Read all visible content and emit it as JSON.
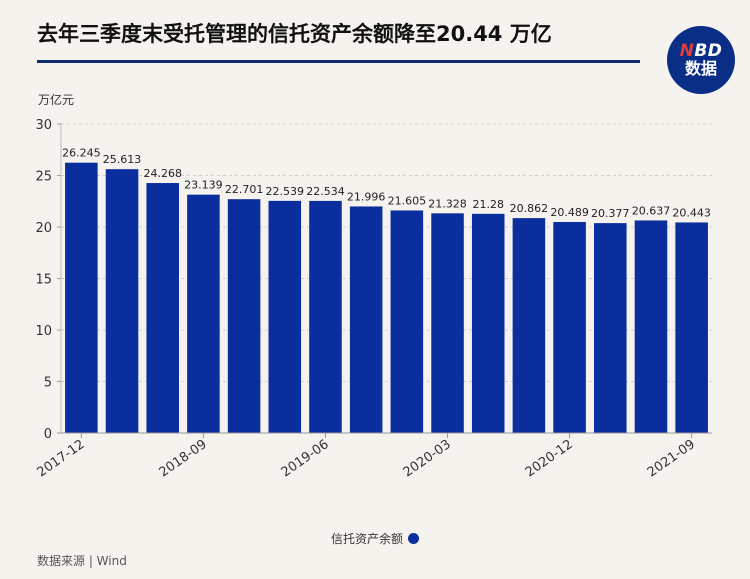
{
  "header": {
    "title": "去年三季度末受托管理的信托资产余额降至20.44 万亿",
    "logo_top": "NBD",
    "logo_bottom": "数据"
  },
  "source": "数据来源 | Wind",
  "colors": {
    "bar": "#0b2e9e",
    "title_rule": "#0e2a6e",
    "logo_bg": "#0a2e86"
  },
  "chart_data": {
    "type": "bar",
    "title": "去年三季度末受托管理的信托资产余额降至20.44 万亿",
    "ylabel": "万亿元",
    "ylim": [
      0,
      30
    ],
    "yticks": [
      0,
      5,
      10,
      15,
      20,
      25,
      30
    ],
    "grid": true,
    "legend_position": "bottom",
    "categories": [
      "2017-12",
      "2018-03",
      "2018-06",
      "2018-09",
      "2018-12",
      "2019-03",
      "2019-06",
      "2019-09",
      "2019-12",
      "2020-03",
      "2020-06",
      "2020-09",
      "2020-12",
      "2021-03",
      "2021-06",
      "2021-09"
    ],
    "xtick_labels_shown": [
      "2017-12",
      "2018-09",
      "2019-06",
      "2020-03",
      "2020-12",
      "2021-09"
    ],
    "series": [
      {
        "name": "信托资产余额",
        "values": [
          26.245,
          25.613,
          24.268,
          23.139,
          22.701,
          22.539,
          22.534,
          21.996,
          21.605,
          21.328,
          21.28,
          20.862,
          20.489,
          20.377,
          20.637,
          20.443
        ],
        "value_labels": [
          "26.245",
          "25.613",
          "24.268",
          "23.139",
          "22.701",
          "22.539",
          "22.534",
          "21.996",
          "21.605",
          "21.328",
          "21.28",
          "20.862",
          "20.489",
          "20.377",
          "20.637",
          "20.443"
        ]
      }
    ]
  }
}
